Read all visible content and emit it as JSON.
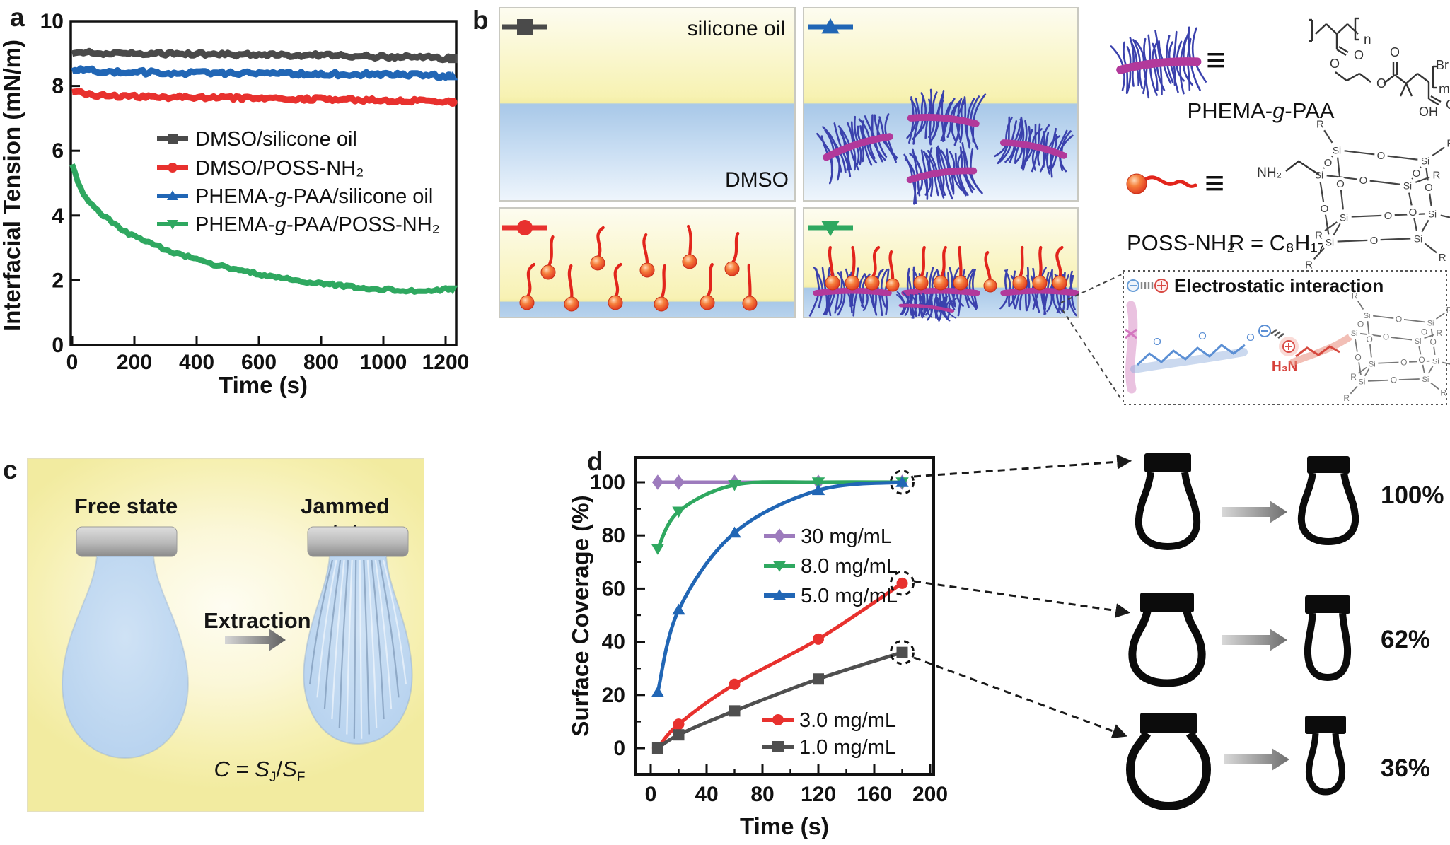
{
  "figure": {
    "panel_a_letter": "a",
    "panel_b_letter": "b",
    "panel_c_letter": "c",
    "panel_d_letter": "d"
  },
  "chart_data": [
    {
      "id": "a",
      "type": "line",
      "title": "",
      "xlabel": "Time (s)",
      "ylabel": "Interfacial Tension (mN/m)",
      "xlim": [
        0,
        1240
      ],
      "ylim": [
        0,
        10
      ],
      "xticks": [
        0,
        200,
        400,
        600,
        800,
        1000,
        1200
      ],
      "yticks": [
        0,
        2,
        4,
        6,
        8,
        10
      ],
      "grid": false,
      "legend_position": "center-right-inside",
      "x": [
        0,
        20,
        40,
        60,
        80,
        100,
        140,
        180,
        220,
        260,
        300,
        350,
        400,
        450,
        500,
        550,
        600,
        650,
        700,
        750,
        800,
        850,
        900,
        950,
        1000,
        1050,
        1100,
        1150,
        1200
      ],
      "series": [
        {
          "name": "DMSO/silicone oil",
          "color": "#4a4a4a",
          "marker": "square",
          "values": [
            9.0,
            9.05,
            9.05,
            9.02,
            9.0,
            9.0,
            9.0,
            9.0,
            9.0,
            9.0,
            9.0,
            9.0,
            8.98,
            8.98,
            8.97,
            8.97,
            8.96,
            8.96,
            8.95,
            8.95,
            8.95,
            8.94,
            8.93,
            8.92,
            8.9,
            8.9,
            8.9,
            8.88,
            8.85
          ]
        },
        {
          "name": "DMSO/POSS-NH₂",
          "color": "#e8312e",
          "marker": "circle",
          "values": [
            7.85,
            7.8,
            7.76,
            7.73,
            7.7,
            7.7,
            7.68,
            7.68,
            7.67,
            7.66,
            7.65,
            7.65,
            7.65,
            7.64,
            7.63,
            7.62,
            7.62,
            7.6,
            7.6,
            7.6,
            7.6,
            7.58,
            7.58,
            7.56,
            7.55,
            7.55,
            7.55,
            7.52,
            7.5
          ]
        },
        {
          "name": "PHEMA-g-PAA/silicone oil",
          "color": "#2166b5",
          "marker": "triangle-up",
          "values": [
            8.45,
            8.5,
            8.5,
            8.48,
            8.46,
            8.45,
            8.44,
            8.43,
            8.42,
            8.42,
            8.42,
            8.41,
            8.4,
            8.4,
            8.4,
            8.4,
            8.38,
            8.38,
            8.38,
            8.38,
            8.37,
            8.37,
            8.36,
            8.36,
            8.35,
            8.35,
            8.35,
            8.33,
            8.3
          ]
        },
        {
          "name": "PHEMA-g-PAA/POSS-NH₂",
          "color": "#2fa860",
          "marker": "triangle-down",
          "values": [
            5.6,
            5.0,
            4.6,
            4.35,
            4.15,
            4.0,
            3.7,
            3.45,
            3.25,
            3.1,
            2.95,
            2.8,
            2.65,
            2.5,
            2.4,
            2.3,
            2.2,
            2.1,
            2.05,
            1.95,
            1.9,
            1.85,
            1.8,
            1.75,
            1.72,
            1.7,
            1.68,
            1.68,
            1.72
          ]
        }
      ]
    },
    {
      "id": "d",
      "type": "scatter-line",
      "title": "",
      "xlabel": "Time (s)",
      "ylabel": "Surface Coverage (%)",
      "xlim": [
        -11,
        200
      ],
      "ylim": [
        -10,
        110
      ],
      "xticks": [
        0,
        40,
        80,
        120,
        160,
        200
      ],
      "yticks": [
        0,
        20,
        40,
        60,
        80,
        100
      ],
      "grid": false,
      "x": [
        5,
        20,
        60,
        120,
        180
      ],
      "series": [
        {
          "name": "30 mg/mL",
          "color": "#9d7bbd",
          "marker": "diamond",
          "values": [
            100,
            100,
            100,
            100,
            100
          ],
          "circled_last": true
        },
        {
          "name": "8.0 mg/mL",
          "color": "#2fa860",
          "marker": "triangle-down",
          "values": [
            75,
            89,
            99,
            100,
            100
          ],
          "circled_last": false
        },
        {
          "name": "5.0 mg/mL",
          "color": "#2166b5",
          "marker": "triangle-up",
          "values": [
            21,
            52,
            81,
            97,
            100
          ],
          "circled_last": false
        },
        {
          "name": "3.0 mg/mL",
          "color": "#e8312e",
          "marker": "circle",
          "values": [
            0,
            9,
            24,
            41,
            62
          ],
          "circled_last": true
        },
        {
          "name": "1.0 mg/mL",
          "color": "#4f4f4f",
          "marker": "square",
          "values": [
            0,
            5,
            14,
            26,
            36
          ],
          "circled_last": true
        }
      ],
      "legend_split": [
        3,
        2
      ]
    }
  ],
  "panel_b": {
    "oil_label": "silicone oil",
    "dmso_label": "DMSO"
  },
  "structures": {
    "phema_name": "PHEMA-g-PAA",
    "poss_name": "POSS-NH₂",
    "r_def": "R = C₈H₁₇",
    "equiv": "≡",
    "inset_title": "Electrostatic interaction",
    "atom_o": "O",
    "atom_oh": "OH",
    "atom_si": "Si",
    "atom_r": "R",
    "atom_nh2": "NH₂",
    "atom_h3n": "H₃N",
    "atom_br": "Br",
    "sub_n": "n",
    "sub_m": "m"
  },
  "panel_c": {
    "free_label": "Free state",
    "jammed_label": "Jammed state",
    "extraction_label": "Extraction",
    "eq_c": "C",
    "eq_equals": " = ",
    "eq_s1": "S",
    "eq_sub_j": "J",
    "eq_slash": "/",
    "eq_s2": "S",
    "eq_sub_f": "F"
  },
  "panel_d": {
    "rows": [
      {
        "percent": "100%"
      },
      {
        "percent": "62%"
      },
      {
        "percent": "36%"
      }
    ]
  },
  "colors": {
    "dmso_silicone": "#4a4a4a",
    "dmso_poss": "#e8312e",
    "phema_silicone": "#2166b5",
    "phema_poss": "#2fa860",
    "conc_30": "#9d7bbd",
    "oil_yellow": "#f5efac",
    "dmso_blue": "#a8c8e8",
    "micelle_spine_blue": "#3a41ad",
    "micelle_core_magenta": "#b2399b",
    "tadpole_red": "#e2251c"
  }
}
